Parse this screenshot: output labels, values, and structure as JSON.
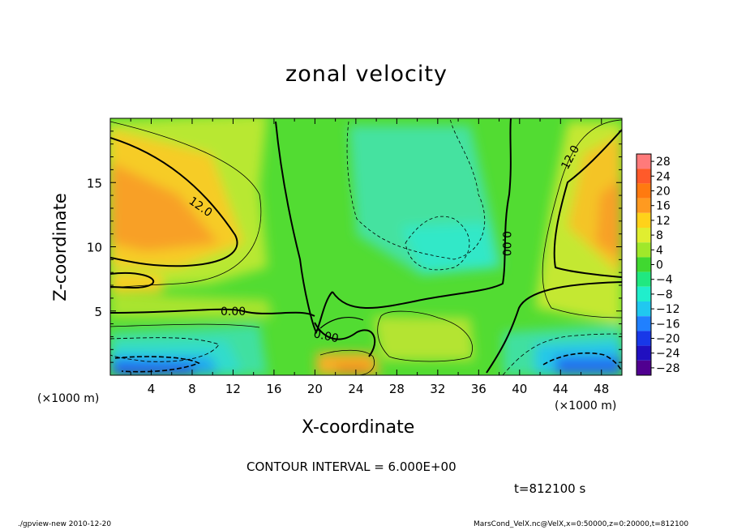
{
  "chart_data": {
    "type": "heatmap",
    "title": "zonal velocity",
    "xlabel": "X-coordinate",
    "ylabel": "Z-coordinate",
    "x_unit": "(×1000 m)",
    "xlim": [
      0,
      50
    ],
    "ylim": [
      0,
      20
    ],
    "x_ticks": [
      4,
      8,
      12,
      16,
      20,
      24,
      28,
      32,
      36,
      40,
      44,
      48
    ],
    "y_ticks": [
      5,
      10,
      15
    ],
    "colorbar_levels": [
      28,
      24,
      20,
      16,
      12,
      8,
      4,
      0,
      -4,
      -8,
      -12,
      -16,
      -20,
      -24,
      -28
    ],
    "colorbar_labels": [
      "28",
      "24",
      "20",
      "16",
      "12",
      "8",
      "4",
      "0",
      "−4",
      "−8",
      "−12",
      "−16",
      "−20",
      "−24",
      "−28"
    ],
    "colorbar_colors": [
      "#ff7a7a",
      "#ff5a2a",
      "#ff7a10",
      "#ff9a20",
      "#ffd21a",
      "#e0ee30",
      "#a0e82a",
      "#40d830",
      "#20e880",
      "#20eecc",
      "#20c8f0",
      "#2080ff",
      "#1838e8",
      "#2010c0",
      "#500090"
    ],
    "contour_interval": "CONTOUR INTERVAL = 6.000E+00",
    "contour_labels": [
      "12.0",
      "12.0",
      "0.00",
      "0.00",
      "0.00"
    ],
    "grid": false,
    "colorbar_position": "right"
  },
  "time_label": "t=812100 s",
  "footer_left": "./gpview-new   2010-12-20",
  "footer_right": "MarsCond_VelX.nc@VelX,x=0:50000,z=0:20000,t=812100"
}
